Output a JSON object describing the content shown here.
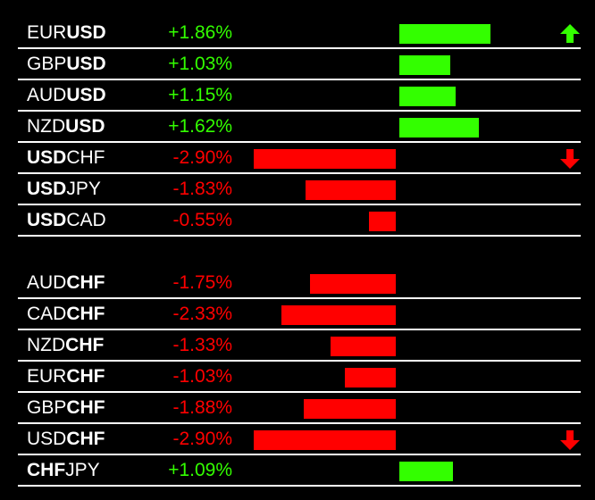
{
  "colors": {
    "positive": "#33ff00",
    "negative": "#ff0000",
    "line": "#ffffff",
    "background": "#000000"
  },
  "groups": [
    {
      "rows": [
        {
          "base": "EUR",
          "quote": "USD",
          "bold": "quote",
          "change": "+1.86%",
          "value": 1.86,
          "arrow": "arrow-up-icon"
        },
        {
          "base": "GBP",
          "quote": "USD",
          "bold": "quote",
          "change": "+1.03%",
          "value": 1.03
        },
        {
          "base": "AUD",
          "quote": "USD",
          "bold": "quote",
          "change": "+1.15%",
          "value": 1.15
        },
        {
          "base": "NZD",
          "quote": "USD",
          "bold": "quote",
          "change": "+1.62%",
          "value": 1.62
        },
        {
          "base": "USD",
          "quote": "CHF",
          "bold": "base",
          "change": "-2.90%",
          "value": -2.9,
          "arrow": "arrow-down-icon"
        },
        {
          "base": "USD",
          "quote": "JPY",
          "bold": "base",
          "change": "-1.83%",
          "value": -1.83
        },
        {
          "base": "USD",
          "quote": "CAD",
          "bold": "base",
          "change": "-0.55%",
          "value": -0.55
        }
      ]
    },
    {
      "rows": [
        {
          "base": "AUD",
          "quote": "CHF",
          "bold": "quote",
          "change": "-1.75%",
          "value": -1.75
        },
        {
          "base": "CAD",
          "quote": "CHF",
          "bold": "quote",
          "change": "-2.33%",
          "value": -2.33
        },
        {
          "base": "NZD",
          "quote": "CHF",
          "bold": "quote",
          "change": "-1.33%",
          "value": -1.33
        },
        {
          "base": "EUR",
          "quote": "CHF",
          "bold": "quote",
          "change": "-1.03%",
          "value": -1.03
        },
        {
          "base": "GBP",
          "quote": "CHF",
          "bold": "quote",
          "change": "-1.88%",
          "value": -1.88
        },
        {
          "base": "USD",
          "quote": "CHF",
          "bold": "quote",
          "change": "-2.90%",
          "value": -2.9,
          "arrow": "arrow-down-icon"
        },
        {
          "base": "CHF",
          "quote": "JPY",
          "bold": "base",
          "change": "+1.09%",
          "value": 1.09
        }
      ]
    }
  ]
}
